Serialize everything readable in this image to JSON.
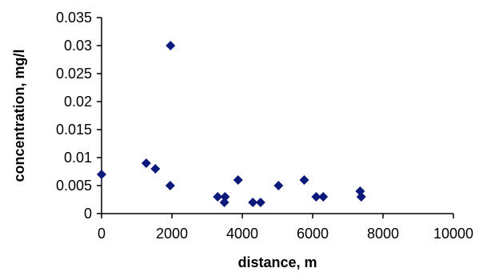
{
  "chart_data": {
    "type": "scatter",
    "title": "",
    "xlabel": "distance, m",
    "ylabel": "concentration, mg/l",
    "xlim": [
      0,
      10000
    ],
    "ylim": [
      0,
      0.035
    ],
    "x_ticks": [
      "0",
      "2000",
      "4000",
      "6000",
      "8000",
      "10000"
    ],
    "y_ticks": [
      "0",
      "0.005",
      "0.01",
      "0.015",
      "0.02",
      "0.025",
      "0.03",
      "0.035"
    ],
    "grid": false,
    "legend": "none",
    "marker": "diamond",
    "marker_color": "#0b1a7a",
    "points": [
      {
        "x": 0,
        "y": 0.007
      },
      {
        "x": 1270,
        "y": 0.009
      },
      {
        "x": 1530,
        "y": 0.008
      },
      {
        "x": 1950,
        "y": 0.005
      },
      {
        "x": 1960,
        "y": 0.03
      },
      {
        "x": 3300,
        "y": 0.003
      },
      {
        "x": 3490,
        "y": 0.002
      },
      {
        "x": 3510,
        "y": 0.003
      },
      {
        "x": 3880,
        "y": 0.006
      },
      {
        "x": 4300,
        "y": 0.002
      },
      {
        "x": 4520,
        "y": 0.002
      },
      {
        "x": 5030,
        "y": 0.005
      },
      {
        "x": 5760,
        "y": 0.006
      },
      {
        "x": 6100,
        "y": 0.003
      },
      {
        "x": 6300,
        "y": 0.003
      },
      {
        "x": 7350,
        "y": 0.004
      },
      {
        "x": 7380,
        "y": 0.003
      }
    ]
  }
}
